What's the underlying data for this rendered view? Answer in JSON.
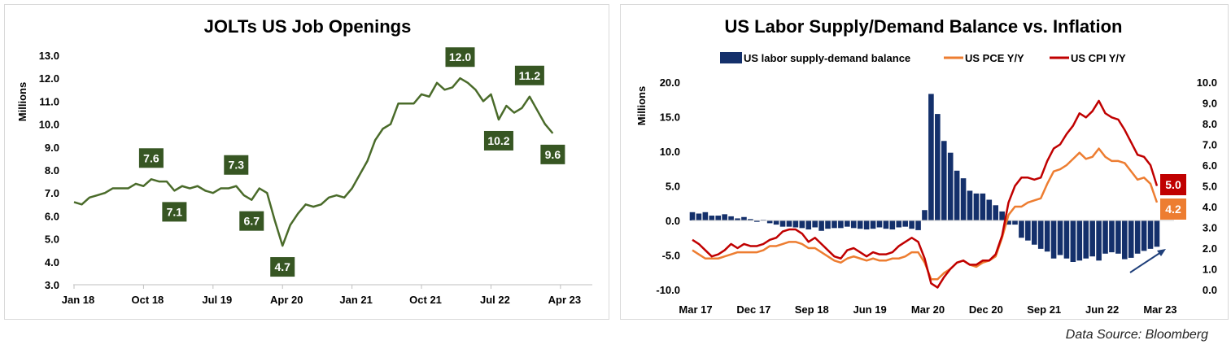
{
  "source": "Data Source: Bloomberg",
  "colors": {
    "jolts_line": "#4a6b2a",
    "jolts_label": "#375623",
    "bars": "#14306b",
    "pce": "#ED7D31",
    "cpi": "#C00000",
    "arrow": "#1f3f7a"
  },
  "chart_data": [
    {
      "type": "line",
      "title": "JOLTs US Job Openings",
      "ylabel": "Millions",
      "ylim": [
        3,
        13
      ],
      "yticks": [
        "3.0",
        "4.0",
        "5.0",
        "6.0",
        "7.0",
        "8.0",
        "9.0",
        "10.0",
        "11.0",
        "12.0",
        "13.0"
      ],
      "xticks": [
        {
          "label": "Jan 18",
          "index": 0
        },
        {
          "label": "Oct 18",
          "index": 9
        },
        {
          "label": "Jul 19",
          "index": 18
        },
        {
          "label": "Apr 20",
          "index": 27
        },
        {
          "label": "Jan 21",
          "index": 36
        },
        {
          "label": "Oct 21",
          "index": 45
        },
        {
          "label": "Jul 22",
          "index": 54
        },
        {
          "label": "Apr 23",
          "index": 63
        }
      ],
      "start": "Jan 2018",
      "frequency": "monthly",
      "values": [
        6.6,
        6.5,
        6.8,
        6.9,
        7.0,
        7.2,
        7.2,
        7.2,
        7.4,
        7.3,
        7.6,
        7.5,
        7.5,
        7.1,
        7.3,
        7.2,
        7.3,
        7.1,
        7.0,
        7.2,
        7.2,
        7.3,
        6.9,
        6.7,
        7.2,
        7.0,
        5.8,
        4.7,
        5.6,
        6.1,
        6.5,
        6.4,
        6.5,
        6.8,
        6.9,
        6.8,
        7.2,
        7.8,
        8.4,
        9.3,
        9.8,
        10.0,
        10.9,
        10.9,
        10.9,
        11.3,
        11.2,
        11.8,
        11.5,
        11.6,
        12.0,
        11.8,
        11.5,
        11.0,
        11.3,
        10.2,
        10.8,
        10.5,
        10.7,
        11.2,
        10.6,
        10.0,
        9.6
      ],
      "annotations": [
        {
          "index": 10,
          "text": "7.6",
          "pos": "above"
        },
        {
          "index": 13,
          "text": "7.1",
          "pos": "below"
        },
        {
          "index": 21,
          "text": "7.3",
          "pos": "above"
        },
        {
          "index": 23,
          "text": "6.7",
          "pos": "below"
        },
        {
          "index": 27,
          "text": "4.7",
          "pos": "below"
        },
        {
          "index": 50,
          "text": "12.0",
          "pos": "above"
        },
        {
          "index": 55,
          "text": "10.2",
          "pos": "below"
        },
        {
          "index": 59,
          "text": "11.2",
          "pos": "above"
        },
        {
          "index": 62,
          "text": "9.6",
          "pos": "below"
        }
      ]
    },
    {
      "type": "bar+line",
      "title": "US Labor Supply/Demand Balance vs. Inflation",
      "ylabel": "Millions",
      "ylim": [
        -10,
        20
      ],
      "y2lim": [
        0,
        10
      ],
      "yticks": [
        "-10.0",
        "-5.0",
        "0.0",
        "5.0",
        "10.0",
        "15.0",
        "20.0"
      ],
      "y2ticks": [
        "0.0",
        "1.0",
        "2.0",
        "3.0",
        "4.0",
        "5.0",
        "6.0",
        "7.0",
        "8.0",
        "9.0",
        "10.0"
      ],
      "xticks": [
        {
          "label": "Mar 17",
          "index": 0
        },
        {
          "label": "Dec 17",
          "index": 9
        },
        {
          "label": "Sep 18",
          "index": 18
        },
        {
          "label": "Jun 19",
          "index": 27
        },
        {
          "label": "Mar 20",
          "index": 36
        },
        {
          "label": "Dec 20",
          "index": 45
        },
        {
          "label": "Sep 21",
          "index": 54
        },
        {
          "label": "Jun 22",
          "index": 63
        },
        {
          "label": "Mar 23",
          "index": 72
        }
      ],
      "start": "Mar 2017",
      "frequency": "monthly",
      "legend": "top",
      "series": [
        {
          "name": "US labor supply-demand balance",
          "axis": "left",
          "kind": "bar",
          "values": [
            1.2,
            1.0,
            1.2,
            0.7,
            0.7,
            0.9,
            0.6,
            0.3,
            0.5,
            0.2,
            -0.2,
            0.1,
            -0.4,
            -0.6,
            -0.9,
            -0.9,
            -1.0,
            -1.1,
            -1.3,
            -1.0,
            -1.5,
            -1.2,
            -1.1,
            -1.1,
            -0.9,
            -1.1,
            -1.2,
            -1.3,
            -1.2,
            -1.0,
            -1.2,
            -1.3,
            -1.0,
            -0.9,
            -1.2,
            -1.4,
            1.5,
            18.3,
            15.4,
            11.5,
            9.8,
            7.2,
            6.1,
            4.3,
            3.9,
            3.9,
            3.0,
            2.2,
            1.3,
            -0.6,
            -0.6,
            -2.5,
            -2.9,
            -3.5,
            -4.1,
            -4.5,
            -5.5,
            -5.0,
            -5.5,
            -6.0,
            -5.8,
            -5.5,
            -5.2,
            -5.8,
            -4.8,
            -4.6,
            -4.8,
            -5.6,
            -5.4,
            -4.8,
            -4.4,
            -4.1,
            -3.8
          ]
        },
        {
          "name": "US PCE Y/Y",
          "axis": "right",
          "kind": "line",
          "values": [
            1.9,
            1.7,
            1.5,
            1.5,
            1.5,
            1.6,
            1.7,
            1.8,
            1.8,
            1.8,
            1.8,
            1.9,
            2.1,
            2.1,
            2.2,
            2.3,
            2.3,
            2.2,
            2.0,
            2.0,
            1.8,
            1.6,
            1.4,
            1.3,
            1.5,
            1.6,
            1.5,
            1.4,
            1.5,
            1.4,
            1.4,
            1.5,
            1.5,
            1.6,
            1.8,
            1.8,
            1.3,
            0.5,
            0.5,
            0.8,
            1.0,
            1.3,
            1.4,
            1.2,
            1.1,
            1.3,
            1.4,
            1.6,
            2.5,
            3.6,
            4.0,
            4.0,
            4.2,
            4.3,
            4.4,
            5.1,
            5.7,
            5.8,
            6.0,
            6.3,
            6.6,
            6.3,
            6.4,
            6.8,
            6.4,
            6.2,
            6.2,
            6.1,
            5.7,
            5.3,
            5.4,
            5.1,
            4.2
          ],
          "end_label": "4.2"
        },
        {
          "name": "US CPI Y/Y",
          "axis": "right",
          "kind": "line",
          "values": [
            2.4,
            2.2,
            1.9,
            1.6,
            1.7,
            1.9,
            2.2,
            2.0,
            2.2,
            2.1,
            2.1,
            2.2,
            2.4,
            2.5,
            2.8,
            2.9,
            2.9,
            2.7,
            2.3,
            2.5,
            2.2,
            1.9,
            1.6,
            1.5,
            1.9,
            2.0,
            1.8,
            1.6,
            1.8,
            1.7,
            1.7,
            1.8,
            2.1,
            2.3,
            2.5,
            2.3,
            1.5,
            0.3,
            0.1,
            0.6,
            1.0,
            1.3,
            1.4,
            1.2,
            1.2,
            1.4,
            1.4,
            1.7,
            2.6,
            4.2,
            5.0,
            5.4,
            5.4,
            5.3,
            5.4,
            6.2,
            6.8,
            7.0,
            7.5,
            7.9,
            8.5,
            8.3,
            8.6,
            9.1,
            8.5,
            8.3,
            8.2,
            7.7,
            7.1,
            6.5,
            6.4,
            6.0,
            5.0
          ],
          "end_label": "5.0"
        }
      ]
    }
  ]
}
